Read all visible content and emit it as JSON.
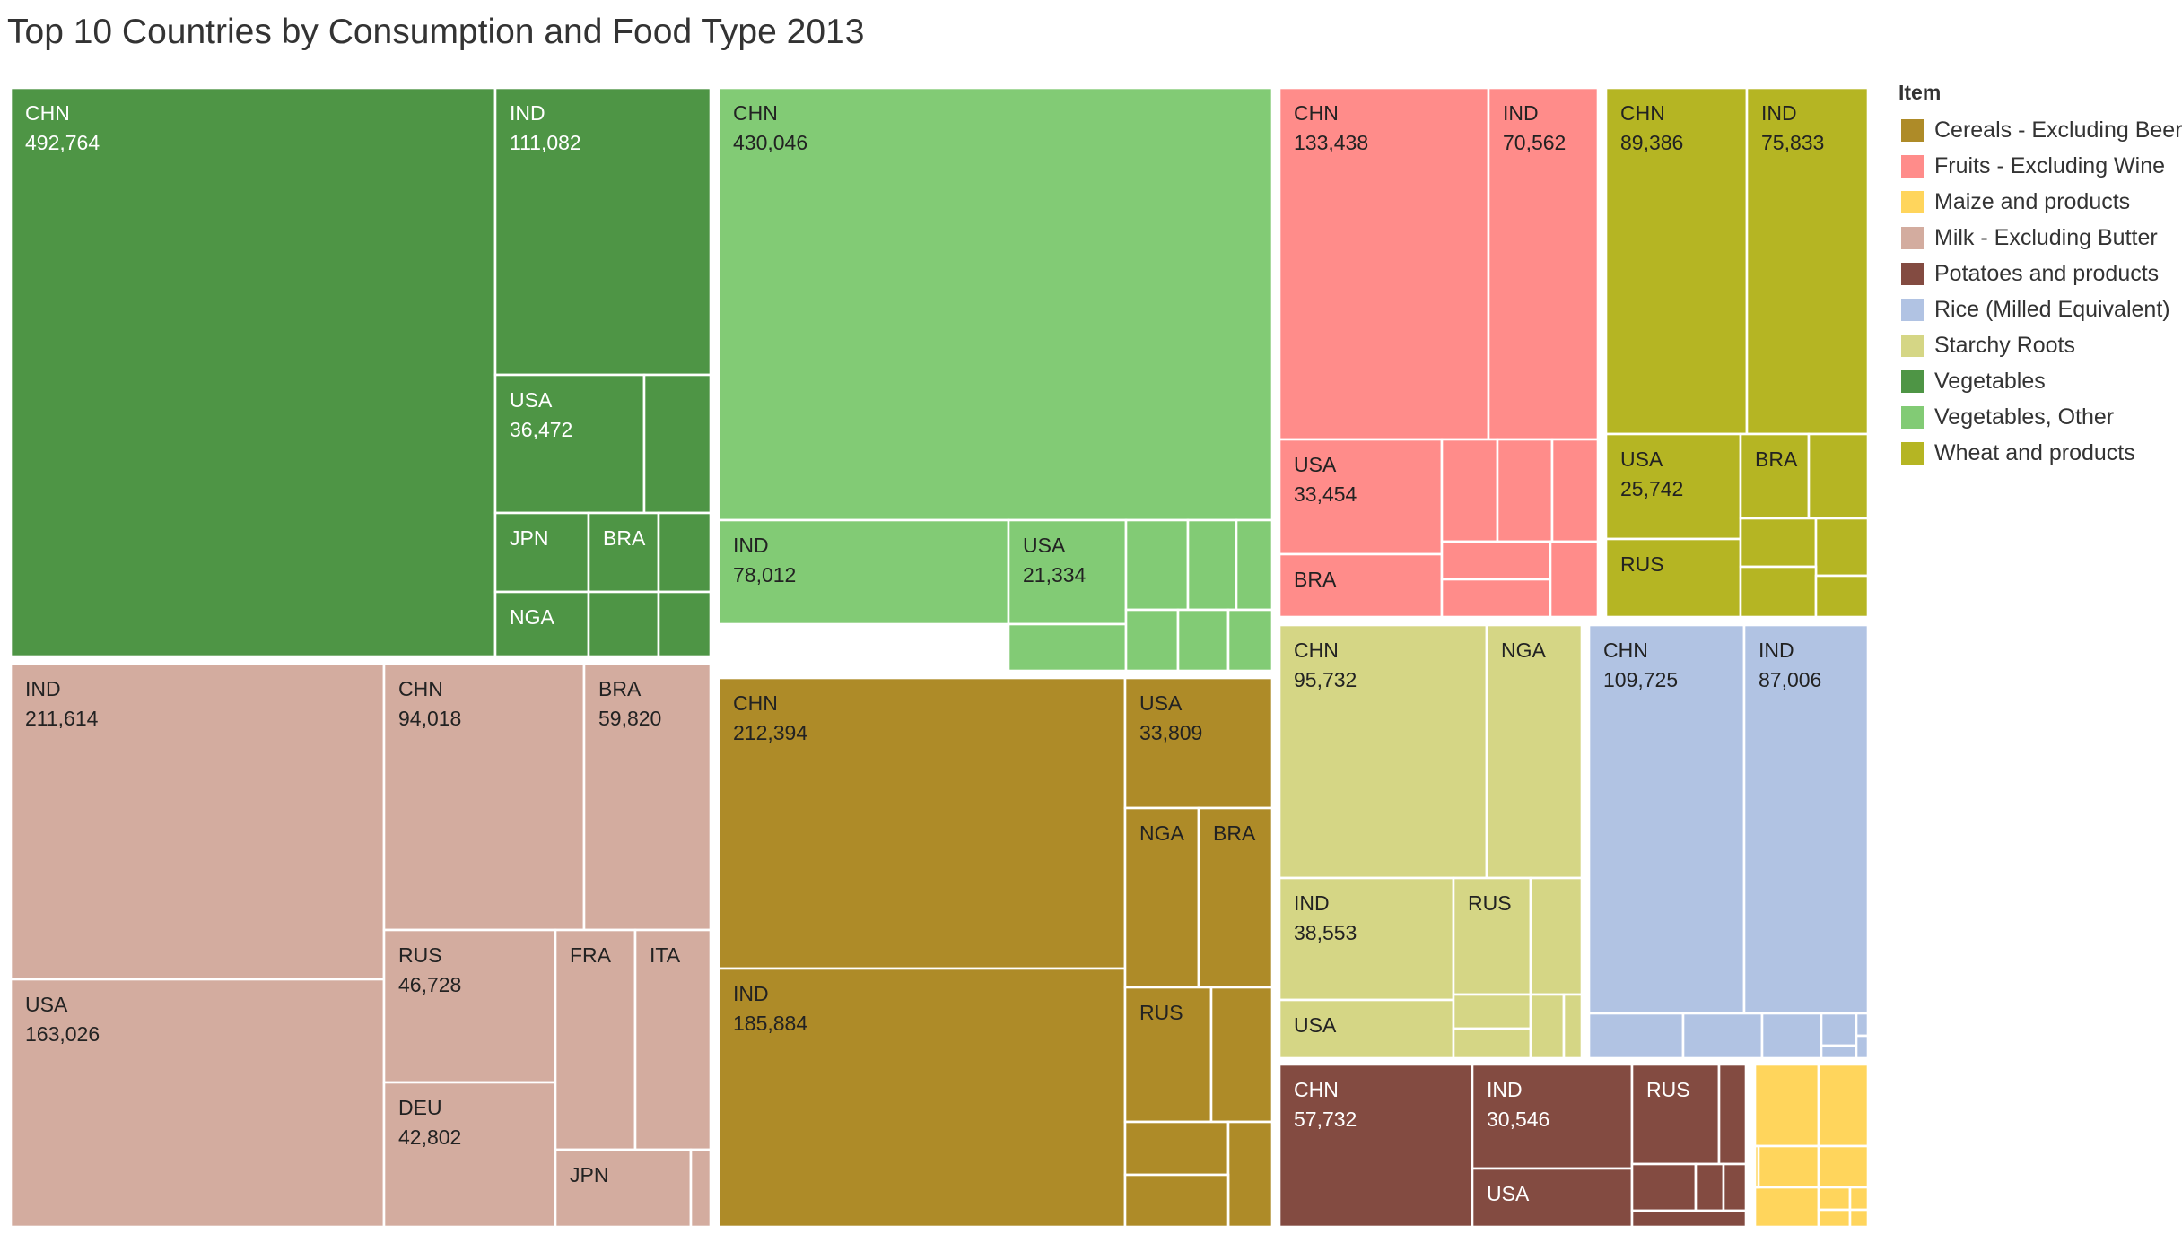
{
  "chart_data": {
    "type": "treemap",
    "title": "Top 10 Countries by Consumption and Food Type 2013",
    "legend": {
      "title": "Item",
      "placement": "right",
      "items": [
        {
          "name": "Cereals - Excluding Beer",
          "color": "#AE8B28"
        },
        {
          "name": "Fruits - Excluding Wine",
          "color": "#FF8C8A"
        },
        {
          "name": "Maize and products",
          "color": "#FFD55C"
        },
        {
          "name": "Milk - Excluding Butter",
          "color": "#D3AC9F"
        },
        {
          "name": "Potatoes and products",
          "color": "#834B41"
        },
        {
          "name": "Rice (Milled Equivalent)",
          "color": "#B1C3E3"
        },
        {
          "name": "Starchy Roots",
          "color": "#D5D685"
        },
        {
          "name": "Vegetables",
          "color": "#4E9545"
        },
        {
          "name": "Vegetables, Other",
          "color": "#82CB75"
        },
        {
          "name": "Wheat and products",
          "color": "#B5B523"
        }
      ]
    },
    "groups": [
      {
        "item": "Vegetables",
        "cells": [
          {
            "country": "CHN",
            "value": "492,764"
          },
          {
            "country": "IND",
            "value": "111,082"
          },
          {
            "country": "USA",
            "value": "36,472"
          },
          {
            "country": "",
            "value": ""
          },
          {
            "country": "JPN",
            "value": ""
          },
          {
            "country": "BRA",
            "value": ""
          },
          {
            "country": "",
            "value": ""
          },
          {
            "country": "NGA",
            "value": ""
          },
          {
            "country": "",
            "value": ""
          },
          {
            "country": "",
            "value": ""
          }
        ]
      },
      {
        "item": "Vegetables, Other",
        "cells": [
          {
            "country": "CHN",
            "value": "430,046"
          },
          {
            "country": "IND",
            "value": "78,012"
          },
          {
            "country": "USA",
            "value": "21,334"
          },
          {
            "country": "",
            "value": ""
          },
          {
            "country": "",
            "value": ""
          },
          {
            "country": "",
            "value": ""
          },
          {
            "country": "",
            "value": ""
          },
          {
            "country": "",
            "value": ""
          },
          {
            "country": "",
            "value": ""
          },
          {
            "country": "",
            "value": ""
          }
        ]
      },
      {
        "item": "Fruits - Excluding Wine",
        "cells": [
          {
            "country": "CHN",
            "value": "133,438"
          },
          {
            "country": "IND",
            "value": "70,562"
          },
          {
            "country": "USA",
            "value": "33,454"
          },
          {
            "country": "",
            "value": ""
          },
          {
            "country": "",
            "value": ""
          },
          {
            "country": "",
            "value": ""
          },
          {
            "country": "BRA",
            "value": ""
          },
          {
            "country": "",
            "value": ""
          },
          {
            "country": "",
            "value": ""
          },
          {
            "country": "",
            "value": ""
          }
        ]
      },
      {
        "item": "Wheat and products",
        "cells": [
          {
            "country": "CHN",
            "value": "89,386"
          },
          {
            "country": "IND",
            "value": "75,833"
          },
          {
            "country": "USA",
            "value": "25,742"
          },
          {
            "country": "BRA",
            "value": ""
          },
          {
            "country": "",
            "value": ""
          },
          {
            "country": "RUS",
            "value": ""
          },
          {
            "country": "",
            "value": ""
          },
          {
            "country": "",
            "value": ""
          },
          {
            "country": "",
            "value": ""
          },
          {
            "country": "",
            "value": ""
          }
        ]
      },
      {
        "item": "Milk - Excluding Butter",
        "cells": [
          {
            "country": "IND",
            "value": "211,614"
          },
          {
            "country": "USA",
            "value": "163,026"
          },
          {
            "country": "CHN",
            "value": "94,018"
          },
          {
            "country": "BRA",
            "value": "59,820"
          },
          {
            "country": "RUS",
            "value": "46,728"
          },
          {
            "country": "DEU",
            "value": "42,802"
          },
          {
            "country": "FRA",
            "value": ""
          },
          {
            "country": "ITA",
            "value": ""
          },
          {
            "country": "JPN",
            "value": ""
          },
          {
            "country": "",
            "value": ""
          }
        ]
      },
      {
        "item": "Cereals - Excluding Beer",
        "cells": [
          {
            "country": "CHN",
            "value": "212,394"
          },
          {
            "country": "IND",
            "value": "185,884"
          },
          {
            "country": "USA",
            "value": "33,809"
          },
          {
            "country": "NGA",
            "value": ""
          },
          {
            "country": "BRA",
            "value": ""
          },
          {
            "country": "RUS",
            "value": ""
          },
          {
            "country": "",
            "value": ""
          },
          {
            "country": "",
            "value": ""
          },
          {
            "country": "",
            "value": ""
          },
          {
            "country": "",
            "value": ""
          }
        ]
      },
      {
        "item": "Starchy Roots",
        "cells": [
          {
            "country": "CHN",
            "value": "95,732"
          },
          {
            "country": "NGA",
            "value": ""
          },
          {
            "country": "IND",
            "value": "38,553"
          },
          {
            "country": "RUS",
            "value": ""
          },
          {
            "country": "",
            "value": ""
          },
          {
            "country": "USA",
            "value": ""
          },
          {
            "country": "",
            "value": ""
          },
          {
            "country": "",
            "value": ""
          },
          {
            "country": "",
            "value": ""
          },
          {
            "country": "",
            "value": ""
          }
        ]
      },
      {
        "item": "Rice (Milled Equivalent)",
        "cells": [
          {
            "country": "CHN",
            "value": "109,725"
          },
          {
            "country": "IND",
            "value": "87,006"
          },
          {
            "country": "",
            "value": ""
          },
          {
            "country": "",
            "value": ""
          },
          {
            "country": "",
            "value": ""
          },
          {
            "country": "",
            "value": ""
          },
          {
            "country": "",
            "value": ""
          },
          {
            "country": "",
            "value": ""
          },
          {
            "country": "",
            "value": ""
          }
        ]
      },
      {
        "item": "Potatoes and products",
        "cells": [
          {
            "country": "CHN",
            "value": "57,732"
          },
          {
            "country": "IND",
            "value": "30,546"
          },
          {
            "country": "RUS",
            "value": ""
          },
          {
            "country": "",
            "value": ""
          },
          {
            "country": "USA",
            "value": ""
          },
          {
            "country": "",
            "value": ""
          },
          {
            "country": "",
            "value": ""
          },
          {
            "country": "",
            "value": ""
          },
          {
            "country": "",
            "value": ""
          }
        ]
      },
      {
        "item": "Maize and products",
        "cells": [
          {
            "country": "",
            "value": ""
          },
          {
            "country": "",
            "value": ""
          },
          {
            "country": "",
            "value": ""
          },
          {
            "country": "",
            "value": ""
          },
          {
            "country": "",
            "value": ""
          },
          {
            "country": "",
            "value": ""
          },
          {
            "country": "",
            "value": ""
          },
          {
            "country": "",
            "value": ""
          },
          {
            "country": "",
            "value": ""
          },
          {
            "country": "",
            "value": ""
          }
        ]
      }
    ]
  }
}
